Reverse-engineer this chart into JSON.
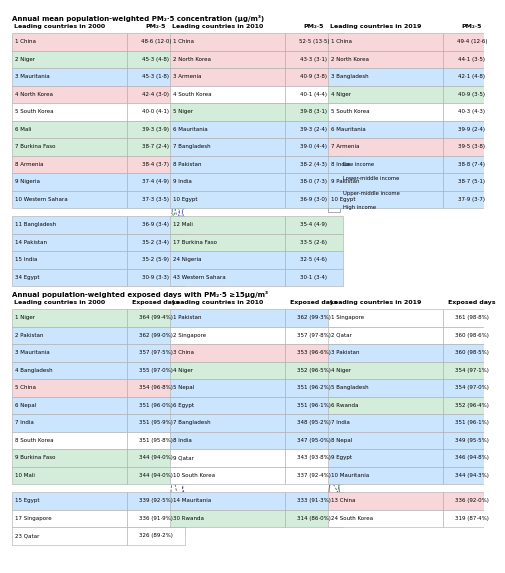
{
  "title_top": "Annual mean population-weighted PM₂·5 concentration (μg/m³)",
  "title_bottom": "Annual population-weighted exposed days with PM₂·5 ≥15μg/m³",
  "section_top": {
    "headers": [
      "Leading countries in 2000",
      "PM₂·5",
      "Leading countries in 2010",
      "PM₂·5",
      "Leading countries in 2019",
      "PM₂·5"
    ],
    "top10_2000": [
      [
        "1 China",
        "48·6 (12·0)",
        "pink"
      ],
      [
        "2 Niger",
        "45·3 (4·8)",
        "green"
      ],
      [
        "3 Mauritania",
        "45·3 (1·8)",
        "blue"
      ],
      [
        "4 North Korea",
        "42·4 (3·0)",
        "pink"
      ],
      [
        "5 South Korea",
        "40·0 (4·1)",
        "white"
      ],
      [
        "6 Mali",
        "39·3 (3·9)",
        "green"
      ],
      [
        "7 Burkina Faso",
        "38·7 (2·4)",
        "green"
      ],
      [
        "8 Armenia",
        "38·4 (3·7)",
        "pink"
      ],
      [
        "9 Nigeria",
        "37·4 (4·9)",
        "blue"
      ],
      [
        "10 Western Sahara",
        "37·3 (3·5)",
        "blue"
      ]
    ],
    "extra_2000": [
      [
        "11 Bangladesh",
        "36·9 (3·4)",
        "blue"
      ],
      [
        "14 Pakistan",
        "35·2 (3·4)",
        "blue"
      ],
      [
        "15 India",
        "35·2 (5·9)",
        "blue"
      ],
      [
        "34 Egypt",
        "30·9 (3·3)",
        "blue"
      ]
    ],
    "top10_2010": [
      [
        "1 China",
        "52·5 (13·5)",
        "pink"
      ],
      [
        "2 North Korea",
        "43·3 (3·1)",
        "pink"
      ],
      [
        "3 Armenia",
        "40·9 (3·8)",
        "pink"
      ],
      [
        "4 South Korea",
        "40·1 (4·4)",
        "white"
      ],
      [
        "5 Niger",
        "39·8 (3·1)",
        "green"
      ],
      [
        "6 Mauritania",
        "39·3 (2·4)",
        "blue"
      ],
      [
        "7 Bangladesh",
        "39·0 (4·4)",
        "blue"
      ],
      [
        "8 Pakistan",
        "38·2 (4·3)",
        "blue"
      ],
      [
        "9 India",
        "38·0 (7·3)",
        "blue"
      ],
      [
        "10 Egypt",
        "36·9 (3·0)",
        "blue"
      ]
    ],
    "extra_2010": [
      [
        "12 Mali",
        "35·4 (4·9)",
        "green"
      ],
      [
        "17 Burkina Faso",
        "33·5 (2·6)",
        "green"
      ],
      [
        "24 Nigeria",
        "32·5 (4·6)",
        "blue"
      ],
      [
        "43 Western Sahara",
        "30·1 (3·4)",
        "blue"
      ]
    ],
    "top10_2019": [
      [
        "1 China",
        "49·4 (12·6)",
        "pink"
      ],
      [
        "2 North Korea",
        "44·1 (3·5)",
        "pink"
      ],
      [
        "3 Bangladesh",
        "42·1 (4·8)",
        "blue"
      ],
      [
        "4 Niger",
        "40·9 (3·5)",
        "green"
      ],
      [
        "5 South Korea",
        "40·3 (4·3)",
        "white"
      ],
      [
        "6 Mauritania",
        "39·9 (2·4)",
        "blue"
      ],
      [
        "7 Armenia",
        "39·5 (3·8)",
        "pink"
      ],
      [
        "8 India",
        "38·8 (7·4)",
        "blue"
      ],
      [
        "9 Pakistan",
        "38·7 (5·1)",
        "blue"
      ],
      [
        "10 Egypt",
        "37·9 (3·7)",
        "blue"
      ]
    ]
  },
  "section_bottom": {
    "headers": [
      "Leading countries in 2000",
      "Exposed days",
      "Leading countries in 2010",
      "Exposed days",
      "Leading countries in 2019",
      "Exposed days"
    ],
    "top10_2000": [
      [
        "1 Niger",
        "364 (99·4%)",
        "green"
      ],
      [
        "2 Pakistan",
        "362 (99·0%)",
        "blue"
      ],
      [
        "3 Mauritania",
        "357 (97·5%)",
        "blue"
      ],
      [
        "4 Bangladesh",
        "355 (97·0%)",
        "blue"
      ],
      [
        "5 China",
        "354 (96·8%)",
        "pink"
      ],
      [
        "6 Nepal",
        "351 (96·0%)",
        "blue"
      ],
      [
        "7 India",
        "351 (95·9%)",
        "blue"
      ],
      [
        "8 South Korea",
        "351 (95·8%)",
        "white"
      ],
      [
        "9 Burkina Faso",
        "344 (94·0%)",
        "green"
      ],
      [
        "10 Mali",
        "344 (94·0%)",
        "green"
      ]
    ],
    "extra_2000": [
      [
        "15 Egypt",
        "339 (92·5%)",
        "blue"
      ],
      [
        "17 Singapore",
        "336 (91·9%)",
        "white"
      ],
      [
        "23 Qatar",
        "326 (89·2%)",
        "white"
      ]
    ],
    "top10_2010": [
      [
        "1 Pakistan",
        "362 (99·3%)",
        "blue"
      ],
      [
        "2 Singapore",
        "357 (97·8%)",
        "white"
      ],
      [
        "3 China",
        "353 (96·6%)",
        "pink"
      ],
      [
        "4 Niger",
        "352 (96·5%)",
        "green"
      ],
      [
        "5 Nepal",
        "351 (96·2%)",
        "blue"
      ],
      [
        "6 Egypt",
        "351 (96·1%)",
        "blue"
      ],
      [
        "7 Bangladesh",
        "348 (95·2%)",
        "blue"
      ],
      [
        "8 India",
        "347 (95·0%)",
        "blue"
      ],
      [
        "9 Qatar",
        "343 (93·8%)",
        "white"
      ],
      [
        "10 South Korea",
        "337 (92·4%)",
        "white"
      ]
    ],
    "extra_2010": [
      [
        "14 Mauritania",
        "333 (91·3%)",
        "blue"
      ],
      [
        "30 Rwanda",
        "314 (86·0%)",
        "green"
      ]
    ],
    "top10_2019": [
      [
        "1 Singapore",
        "361 (98·8%)",
        "white"
      ],
      [
        "2 Qatar",
        "360 (98·6%)",
        "white"
      ],
      [
        "3 Pakistan",
        "360 (98·5%)",
        "blue"
      ],
      [
        "4 Niger",
        "354 (97·1%)",
        "green"
      ],
      [
        "5 Bangladesh",
        "354 (97·0%)",
        "blue"
      ],
      [
        "6 Rwanda",
        "352 (96·4%)",
        "green"
      ],
      [
        "7 India",
        "351 (96·1%)",
        "blue"
      ],
      [
        "8 Nepal",
        "349 (95·5%)",
        "blue"
      ],
      [
        "9 Egypt",
        "346 (94·8%)",
        "blue"
      ],
      [
        "10 Mauritania",
        "344 (94·3%)",
        "blue"
      ]
    ],
    "extra_2019": [
      [
        "13 China",
        "336 (92·0%)",
        "pink"
      ],
      [
        "24 South Korea",
        "319 (87·4%)",
        "white"
      ]
    ]
  }
}
